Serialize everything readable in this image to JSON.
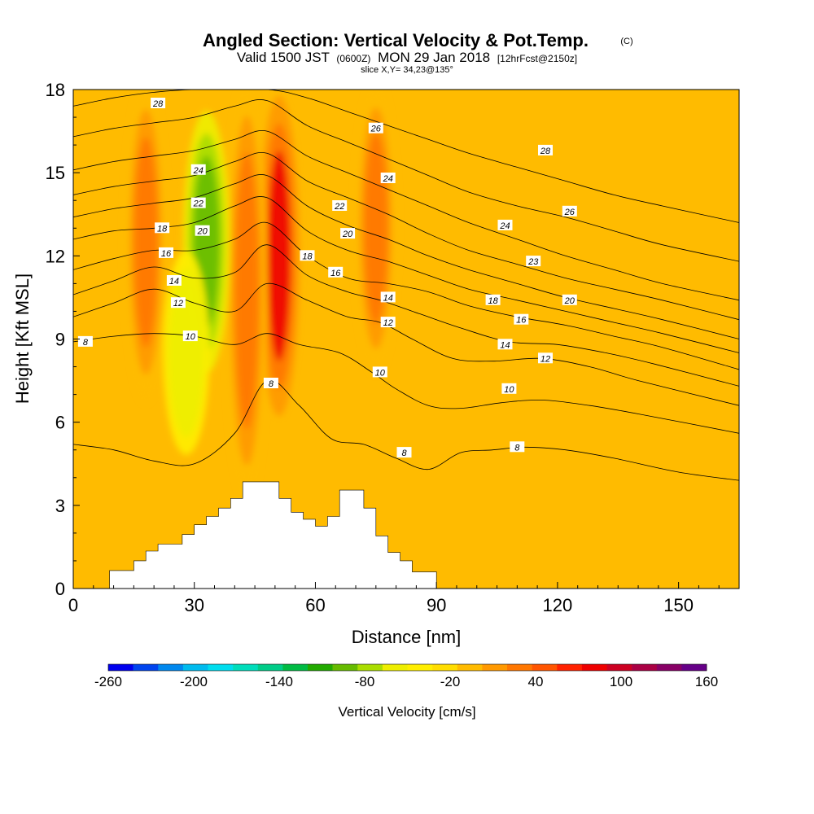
{
  "header": {
    "title": "Angled Section: Vertical Velocity & Pot.Temp.",
    "copyright": "(C)",
    "valid_prefix": "Valid 1500 JST",
    "valid_utc": "(0600Z)",
    "valid_date": "MON 29 Jan 2018",
    "forecast": "[12hrFcst@2150z]",
    "slice": "slice X,Y= 34,23@135°"
  },
  "chart_data": {
    "type": "heatmap",
    "xlabel": "Distance [nm]",
    "ylabel": "Height [Kft MSL]",
    "xlim": [
      0,
      165
    ],
    "ylim": [
      0,
      18
    ],
    "x_ticks": [
      0,
      30,
      60,
      90,
      120,
      150
    ],
    "y_ticks": [
      0,
      3,
      6,
      9,
      12,
      15,
      18
    ],
    "colorbar": {
      "label": "Vertical Velocity [cm/s]",
      "tick_labels": [
        "-260",
        "-200",
        "-140",
        "-80",
        "-20",
        "40",
        "100",
        "160"
      ],
      "range": [
        -260,
        160
      ],
      "step": 20,
      "colors": [
        "#0000ee",
        "#0044ee",
        "#0088ee",
        "#00bbee",
        "#00ddee",
        "#00ddbb",
        "#00cc88",
        "#00bb44",
        "#22aa00",
        "#66bb00",
        "#aadd00",
        "#eeee00",
        "#ffee00",
        "#ffdd00",
        "#ffbb00",
        "#ff9900",
        "#ff7700",
        "#ff5500",
        "#ff2200",
        "#ee0000",
        "#cc0022",
        "#aa0044",
        "#880066",
        "#660088"
      ]
    },
    "velocity_features": [
      {
        "kind": "updraft",
        "x_center": 51,
        "height_range": [
          6.5,
          17.5
        ],
        "peak_cm_s": 130
      },
      {
        "kind": "updraft",
        "x_center": 43,
        "height_range": [
          3.5,
          18
        ],
        "peak_cm_s": 70
      },
      {
        "kind": "updraft",
        "x_center": 75,
        "height_range": [
          8,
          18
        ],
        "peak_cm_s": 70
      },
      {
        "kind": "updraft",
        "x_center": 18,
        "height_range": [
          7,
          18
        ],
        "peak_cm_s": 70
      },
      {
        "kind": "downdraft",
        "x_center": 33,
        "height_range": [
          8,
          17
        ],
        "peak_cm_s": -70
      },
      {
        "kind": "downdraft",
        "x_center": 28,
        "height_range": [
          5,
          12
        ],
        "peak_cm_s": -40
      }
    ],
    "terrain_kft": [
      [
        0,
        0
      ],
      [
        9,
        0
      ],
      [
        9,
        0.65
      ],
      [
        15,
        0.65
      ],
      [
        15,
        1
      ],
      [
        18,
        1
      ],
      [
        18,
        1.35
      ],
      [
        21,
        1.35
      ],
      [
        21,
        1.6
      ],
      [
        27,
        1.6
      ],
      [
        27,
        1.95
      ],
      [
        30,
        1.95
      ],
      [
        30,
        2.3
      ],
      [
        33,
        2.3
      ],
      [
        33,
        2.6
      ],
      [
        36,
        2.6
      ],
      [
        36,
        2.9
      ],
      [
        39,
        2.9
      ],
      [
        39,
        3.25
      ],
      [
        42,
        3.25
      ],
      [
        42,
        3.85
      ],
      [
        51,
        3.85
      ],
      [
        51,
        3.25
      ],
      [
        54,
        3.25
      ],
      [
        54,
        2.75
      ],
      [
        57,
        2.75
      ],
      [
        57,
        2.5
      ],
      [
        60,
        2.5
      ],
      [
        60,
        2.25
      ],
      [
        63,
        2.25
      ],
      [
        63,
        2.6
      ],
      [
        66,
        2.6
      ],
      [
        66,
        3.55
      ],
      [
        72,
        3.55
      ],
      [
        72,
        2.9
      ],
      [
        75,
        2.9
      ],
      [
        75,
        1.9
      ],
      [
        78,
        1.9
      ],
      [
        78,
        1.3
      ],
      [
        81,
        1.3
      ],
      [
        81,
        1.0
      ],
      [
        84,
        1.0
      ],
      [
        84,
        0.6
      ],
      [
        90,
        0.6
      ],
      [
        90,
        0
      ],
      [
        165,
        0
      ]
    ],
    "isentropes": [
      {
        "label": "8",
        "points": [
          [
            0,
            5.2
          ],
          [
            10,
            5.0
          ],
          [
            20,
            4.6
          ],
          [
            30,
            4.5
          ],
          [
            40,
            5.6
          ],
          [
            48,
            7.5
          ],
          [
            56,
            6.6
          ],
          [
            64,
            5.4
          ],
          [
            72,
            5.2
          ],
          [
            80,
            4.7
          ],
          [
            88,
            4.3
          ],
          [
            96,
            4.9
          ],
          [
            104,
            5.0
          ],
          [
            112,
            5.1
          ],
          [
            122,
            5.0
          ],
          [
            134,
            4.7
          ],
          [
            150,
            4.2
          ],
          [
            165,
            3.9
          ]
        ]
      },
      {
        "label": "10",
        "points": [
          [
            0,
            8.9
          ],
          [
            10,
            9.1
          ],
          [
            20,
            9.2
          ],
          [
            30,
            9.1
          ],
          [
            40,
            8.8
          ],
          [
            48,
            9.2
          ],
          [
            56,
            8.8
          ],
          [
            66,
            8.5
          ],
          [
            74,
            7.8
          ],
          [
            80,
            7.2
          ],
          [
            88,
            6.6
          ],
          [
            96,
            6.5
          ],
          [
            106,
            6.7
          ],
          [
            116,
            6.8
          ],
          [
            128,
            6.6
          ],
          [
            140,
            6.3
          ],
          [
            165,
            5.6
          ]
        ]
      },
      {
        "label": "12",
        "points": [
          [
            0,
            9.8
          ],
          [
            10,
            10.3
          ],
          [
            20,
            10.8
          ],
          [
            30,
            10.3
          ],
          [
            40,
            10.0
          ],
          [
            48,
            11.0
          ],
          [
            58,
            10.4
          ],
          [
            68,
            9.8
          ],
          [
            76,
            9.6
          ],
          [
            84,
            9.0
          ],
          [
            94,
            8.3
          ],
          [
            104,
            8.2
          ],
          [
            116,
            8.3
          ],
          [
            128,
            8.0
          ],
          [
            140,
            7.5
          ],
          [
            165,
            6.6
          ]
        ]
      },
      {
        "label": "14",
        "points": [
          [
            0,
            10.6
          ],
          [
            10,
            11.1
          ],
          [
            20,
            11.6
          ],
          [
            30,
            11.2
          ],
          [
            40,
            11.4
          ],
          [
            48,
            12.4
          ],
          [
            58,
            11.3
          ],
          [
            68,
            10.7
          ],
          [
            76,
            10.4
          ],
          [
            86,
            9.9
          ],
          [
            96,
            9.4
          ],
          [
            108,
            8.9
          ],
          [
            120,
            8.8
          ],
          [
            132,
            8.5
          ],
          [
            144,
            8.1
          ],
          [
            165,
            7.3
          ]
        ]
      },
      {
        "label": "16",
        "points": [
          [
            0,
            11.5
          ],
          [
            10,
            11.9
          ],
          [
            20,
            12.2
          ],
          [
            30,
            12.2
          ],
          [
            40,
            12.6
          ],
          [
            48,
            13.2
          ],
          [
            58,
            12.0
          ],
          [
            68,
            11.2
          ],
          [
            78,
            11.0
          ],
          [
            88,
            10.7
          ],
          [
            98,
            10.2
          ],
          [
            110,
            9.8
          ],
          [
            122,
            9.5
          ],
          [
            134,
            9.1
          ],
          [
            146,
            8.7
          ],
          [
            165,
            7.9
          ]
        ]
      },
      {
        "label": "18",
        "points": [
          [
            0,
            12.6
          ],
          [
            10,
            12.9
          ],
          [
            20,
            13.0
          ],
          [
            30,
            13.2
          ],
          [
            40,
            13.8
          ],
          [
            48,
            14.1
          ],
          [
            58,
            12.9
          ],
          [
            68,
            12.2
          ],
          [
            78,
            11.8
          ],
          [
            88,
            11.3
          ],
          [
            98,
            10.8
          ],
          [
            110,
            10.4
          ],
          [
            122,
            10.0
          ],
          [
            134,
            9.6
          ],
          [
            146,
            9.2
          ],
          [
            165,
            8.5
          ]
        ]
      },
      {
        "label": "20",
        "points": [
          [
            0,
            13.4
          ],
          [
            10,
            13.7
          ],
          [
            20,
            13.9
          ],
          [
            30,
            14.1
          ],
          [
            40,
            14.6
          ],
          [
            48,
            14.9
          ],
          [
            58,
            13.8
          ],
          [
            68,
            13.1
          ],
          [
            78,
            12.6
          ],
          [
            88,
            12.0
          ],
          [
            98,
            11.5
          ],
          [
            110,
            11.0
          ],
          [
            122,
            10.5
          ],
          [
            134,
            10.1
          ],
          [
            146,
            9.7
          ],
          [
            165,
            9.0
          ]
        ]
      },
      {
        "label": "22",
        "points": [
          [
            0,
            14.2
          ],
          [
            10,
            14.5
          ],
          [
            20,
            14.7
          ],
          [
            30,
            14.9
          ],
          [
            40,
            15.4
          ],
          [
            48,
            15.7
          ],
          [
            58,
            14.7
          ],
          [
            68,
            14.1
          ],
          [
            78,
            13.5
          ],
          [
            88,
            12.8
          ],
          [
            98,
            12.2
          ],
          [
            110,
            11.7
          ],
          [
            122,
            11.2
          ],
          [
            134,
            10.8
          ],
          [
            146,
            10.4
          ],
          [
            165,
            9.7
          ]
        ]
      },
      {
        "label": "24",
        "points": [
          [
            0,
            15.1
          ],
          [
            10,
            15.4
          ],
          [
            20,
            15.6
          ],
          [
            30,
            15.8
          ],
          [
            40,
            16.2
          ],
          [
            48,
            16.5
          ],
          [
            58,
            15.6
          ],
          [
            68,
            15.0
          ],
          [
            78,
            14.4
          ],
          [
            88,
            13.8
          ],
          [
            98,
            13.2
          ],
          [
            110,
            12.6
          ],
          [
            122,
            12.0
          ],
          [
            134,
            11.5
          ],
          [
            146,
            11.0
          ],
          [
            165,
            10.4
          ]
        ]
      },
      {
        "label": "26",
        "points": [
          [
            0,
            16.3
          ],
          [
            10,
            16.6
          ],
          [
            20,
            16.8
          ],
          [
            30,
            17.0
          ],
          [
            40,
            17.4
          ],
          [
            48,
            17.6
          ],
          [
            58,
            16.7
          ],
          [
            68,
            16.1
          ],
          [
            78,
            15.5
          ],
          [
            88,
            14.9
          ],
          [
            98,
            14.3
          ],
          [
            110,
            13.8
          ],
          [
            122,
            13.4
          ],
          [
            134,
            12.9
          ],
          [
            146,
            12.4
          ],
          [
            165,
            11.8
          ]
        ]
      },
      {
        "label": "28",
        "points": [
          [
            0,
            17.4
          ],
          [
            10,
            17.7
          ],
          [
            20,
            17.9
          ],
          [
            30,
            18.0
          ],
          [
            48,
            18.0
          ],
          [
            58,
            17.7
          ],
          [
            68,
            17.2
          ],
          [
            78,
            16.7
          ],
          [
            88,
            16.2
          ],
          [
            98,
            15.7
          ],
          [
            110,
            15.2
          ],
          [
            122,
            14.7
          ],
          [
            134,
            14.2
          ],
          [
            146,
            13.8
          ],
          [
            165,
            13.2
          ]
        ]
      }
    ],
    "contour_labels": [
      {
        "text": "28",
        "x": 21,
        "y": 17.5
      },
      {
        "text": "26",
        "x": 75,
        "y": 16.6
      },
      {
        "text": "28",
        "x": 117,
        "y": 15.8
      },
      {
        "text": "24",
        "x": 31,
        "y": 15.1
      },
      {
        "text": "24",
        "x": 78,
        "y": 14.8
      },
      {
        "text": "22",
        "x": 31,
        "y": 13.9
      },
      {
        "text": "22",
        "x": 66,
        "y": 13.8
      },
      {
        "text": "26",
        "x": 123,
        "y": 13.6
      },
      {
        "text": "20",
        "x": 32,
        "y": 12.9
      },
      {
        "text": "20",
        "x": 68,
        "y": 12.8
      },
      {
        "text": "24",
        "x": 107,
        "y": 13.1
      },
      {
        "text": "18",
        "x": 22,
        "y": 13.0
      },
      {
        "text": "16",
        "x": 23,
        "y": 12.1
      },
      {
        "text": "18",
        "x": 58,
        "y": 12.0
      },
      {
        "text": "23",
        "x": 114,
        "y": 11.8
      },
      {
        "text": "16",
        "x": 65,
        "y": 11.4
      },
      {
        "text": "14",
        "x": 25,
        "y": 11.1
      },
      {
        "text": "14",
        "x": 78,
        "y": 10.5
      },
      {
        "text": "18",
        "x": 104,
        "y": 10.4
      },
      {
        "text": "20",
        "x": 123,
        "y": 10.4
      },
      {
        "text": "12",
        "x": 26,
        "y": 10.3
      },
      {
        "text": "12",
        "x": 78,
        "y": 9.6
      },
      {
        "text": "16",
        "x": 111,
        "y": 9.7
      },
      {
        "text": "10",
        "x": 29,
        "y": 9.1
      },
      {
        "text": "14",
        "x": 107,
        "y": 8.8
      },
      {
        "text": "8",
        "x": 3,
        "y": 8.9
      },
      {
        "text": "12",
        "x": 117,
        "y": 8.3
      },
      {
        "text": "10",
        "x": 76,
        "y": 7.8
      },
      {
        "text": "8",
        "x": 49,
        "y": 7.4
      },
      {
        "text": "10",
        "x": 108,
        "y": 7.2
      },
      {
        "text": "8",
        "x": 82,
        "y": 4.9
      },
      {
        "text": "8",
        "x": 110,
        "y": 5.1
      }
    ]
  }
}
